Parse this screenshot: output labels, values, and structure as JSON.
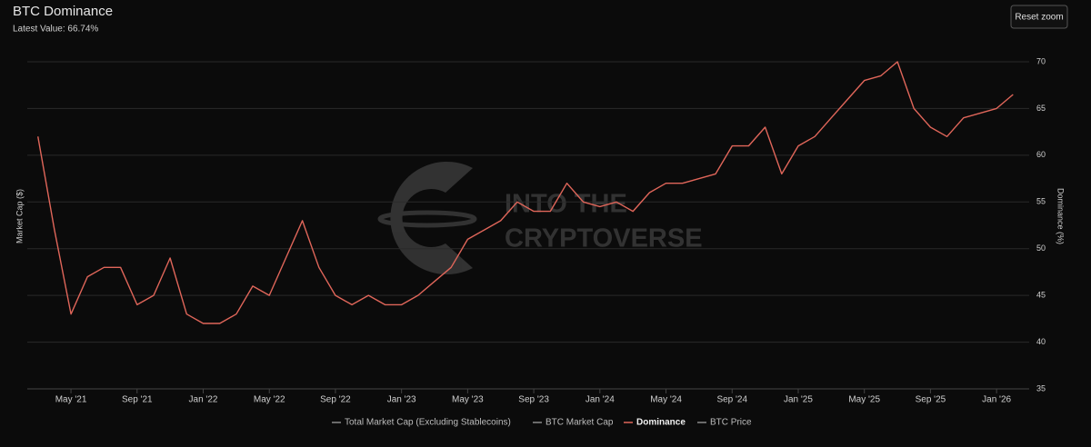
{
  "chart_data": {
    "type": "line",
    "title": "BTC Dominance",
    "subtitle": "Latest Value: 66.74%",
    "button": "Reset zoom",
    "watermark": [
      "INTO THE",
      "CRYPTOVERSE"
    ],
    "ylabel": "Market Cap ($)",
    "y2label": "Dominance (%)",
    "categories": [
      null,
      null,
      "May '21",
      null,
      null,
      null,
      "Sep '21",
      null,
      null,
      null,
      "Jan '22",
      null,
      null,
      null,
      "May '22",
      null,
      null,
      null,
      "Sep '22",
      null,
      null,
      null,
      "Jan '23",
      null,
      null,
      null,
      "May '23",
      null,
      null,
      null,
      "Sep '23",
      null,
      null,
      null,
      "Jan '24",
      null,
      null,
      null,
      "May '24",
      null,
      null,
      null,
      "Sep '24",
      null,
      null,
      null,
      "Jan '25",
      null,
      null,
      null,
      "May '25",
      null,
      null,
      null,
      "Sep '25",
      null,
      null,
      null,
      "Jan '26",
      null
    ],
    "series": [
      {
        "name": "Total Market Cap (Excluding Stablecoins)",
        "color": "#8a8a8a",
        "visible": false
      },
      {
        "name": "BTC Market Cap",
        "color": "#8a8a8a",
        "visible": false
      },
      {
        "name": "Dominance",
        "color": "#e0665a",
        "visible": true,
        "axis": "y2",
        "values": [
          62,
          52,
          43,
          47,
          48,
          48,
          44,
          45,
          49,
          43,
          42,
          42,
          43,
          46,
          45,
          49,
          53,
          48,
          45,
          44,
          45,
          44,
          44,
          45,
          46.5,
          48,
          51,
          52,
          53,
          55,
          54,
          54,
          57,
          55,
          54.5,
          55,
          54,
          56,
          57,
          57,
          57.5,
          58,
          61,
          61,
          63,
          58,
          61,
          62,
          64,
          66,
          68,
          68.5,
          70,
          65,
          63,
          62,
          64,
          64.5,
          65,
          66.5
        ]
      },
      {
        "name": "BTC Price",
        "color": "#8a8a8a",
        "visible": false
      }
    ],
    "y2lim": [
      35,
      70
    ],
    "y2ticks": [
      35,
      40,
      45,
      50,
      55,
      60,
      65,
      70
    ],
    "grid": true
  }
}
